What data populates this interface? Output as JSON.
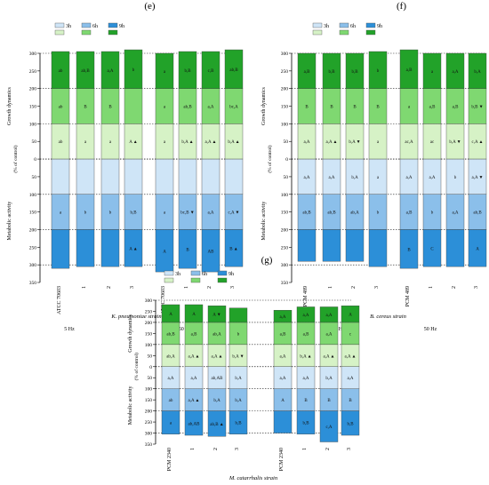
{
  "legend": {
    "entries": [
      "3h",
      "6h",
      "9h"
    ],
    "growth_colors": [
      "#d6f2c6",
      "#7fd871",
      "#22a229"
    ],
    "metabolic_colors": [
      "#cfe5f7",
      "#8bbfea",
      "#2c8fd8"
    ]
  },
  "axis": {
    "ylabel_top": "Growth dynamics",
    "ylabel_pct": "(% of control)",
    "ylabel_bottom": "Metabolic activity",
    "ticks": [
      "300",
      "250",
      "200",
      "150",
      "100",
      "50",
      "0",
      "50",
      "100",
      "150",
      "200",
      "250",
      "300",
      "350"
    ]
  },
  "chart_data": [
    {
      "type": "bar",
      "panel": "(e)",
      "title": "K. pneumoniae strain",
      "categories": [
        "ATCC 70603",
        "1",
        "2",
        "3",
        "ATCC 70603",
        "1",
        "2",
        "3"
      ],
      "groups": [
        "5 Hz",
        "50 Hz"
      ],
      "ylim_growth": [
        0,
        300
      ],
      "ylim_metabolic": [
        0,
        350
      ],
      "series": [
        {
          "name": "3h",
          "growth": [
            100,
            100,
            100,
            100,
            100,
            100,
            100,
            100
          ],
          "metabolic": [
            100,
            100,
            100,
            100,
            100,
            100,
            100,
            100
          ]
        },
        {
          "name": "6h",
          "growth": [
            200,
            200,
            200,
            200,
            200,
            200,
            200,
            200
          ],
          "metabolic": [
            200,
            200,
            200,
            200,
            200,
            200,
            200,
            200
          ]
        },
        {
          "name": "9h",
          "growth": [
            305,
            305,
            305,
            310,
            300,
            305,
            305,
            310
          ],
          "metabolic": [
            310,
            305,
            305,
            305,
            320,
            310,
            320,
            305
          ]
        }
      ],
      "labels_growth": [
        [
          "ab",
          "a",
          "a",
          "A ▲",
          "a",
          "b,A ▲",
          "a,A ▲",
          "b,A ▲"
        ],
        [
          "ab",
          "B",
          "B",
          "",
          "a",
          "ab,B",
          "a,A",
          "bc,A"
        ],
        [
          "ab",
          "ab,B",
          "a,A",
          "b",
          "a",
          "b,B",
          "c,B",
          "ab,B"
        ]
      ],
      "labels_metabolic": [
        [
          "",
          "",
          "",
          "",
          "",
          "",
          "",
          ""
        ],
        [
          "a",
          "b",
          "b",
          "b,B",
          "a",
          "bc,B ▼",
          "a,A",
          "c,A ▼"
        ],
        [
          "",
          "",
          "",
          "A ▲",
          "A",
          "B",
          "AB",
          "B ▲"
        ]
      ]
    },
    {
      "type": "bar",
      "panel": "(f)",
      "title": "B. cereus strain",
      "categories": [
        "PCM 489",
        "1",
        "2",
        "3",
        "PCM 489",
        "1",
        "2",
        "3"
      ],
      "groups": [
        "5 Hz",
        "50 Hz"
      ],
      "ylim_growth": [
        0,
        300
      ],
      "ylim_metabolic": [
        0,
        350
      ],
      "series": [
        {
          "name": "3h",
          "growth": [
            100,
            100,
            100,
            100,
            100,
            100,
            100,
            100
          ],
          "metabolic": [
            100,
            100,
            100,
            100,
            100,
            100,
            100,
            100
          ]
        },
        {
          "name": "6h",
          "growth": [
            200,
            200,
            200,
            200,
            200,
            200,
            200,
            200
          ],
          "metabolic": [
            200,
            200,
            200,
            200,
            200,
            200,
            200,
            200
          ]
        },
        {
          "name": "9h",
          "growth": [
            300,
            300,
            300,
            305,
            310,
            300,
            300,
            300
          ],
          "metabolic": [
            290,
            290,
            290,
            305,
            310,
            305,
            305,
            305
          ]
        }
      ],
      "labels_growth": [
        [
          "a,A",
          "a,A ▲",
          "b,A ▼",
          "a",
          "ac,A",
          "ac",
          "b,A ▼",
          "c,A ▲"
        ],
        [
          "B",
          "B",
          "B",
          "B",
          "a",
          "a,B",
          "a,B",
          "b,B ▼"
        ],
        [
          "a,B",
          "b,B",
          "b,B",
          "b",
          "a,B",
          "a",
          "a,A",
          "b,A"
        ]
      ],
      "labels_metabolic": [
        [
          "a,A",
          "a,A",
          "b,A",
          "a",
          "a,A",
          "a,A",
          "b",
          "a,A ▼"
        ],
        [
          "ab,B",
          "ab,B",
          "ab,A",
          "b",
          "a,B",
          "b",
          "a,A",
          "ab,B"
        ],
        [
          "",
          "",
          "",
          "",
          "B",
          "C",
          "",
          "A"
        ]
      ]
    },
    {
      "type": "bar",
      "panel": "(g)",
      "title": "M. catarrhalis strain",
      "categories": [
        "PCM 2340",
        "1",
        "2",
        "3",
        "PCM 2340",
        "1",
        "2",
        "3"
      ],
      "groups": [
        "5 Hz",
        "50 Hz"
      ],
      "ylim_growth": [
        0,
        300
      ],
      "ylim_metabolic": [
        0,
        350
      ],
      "series": [
        {
          "name": "3h",
          "growth": [
            100,
            100,
            100,
            100,
            100,
            100,
            100,
            100
          ],
          "metabolic": [
            100,
            100,
            100,
            100,
            100,
            100,
            100,
            100
          ]
        },
        {
          "name": "6h",
          "growth": [
            200,
            200,
            200,
            200,
            200,
            200,
            200,
            200
          ],
          "metabolic": [
            200,
            200,
            200,
            200,
            200,
            200,
            200,
            200
          ]
        },
        {
          "name": "9h",
          "growth": [
            280,
            280,
            275,
            265,
            255,
            270,
            270,
            275
          ],
          "metabolic": [
            305,
            310,
            315,
            305,
            300,
            305,
            340,
            310
          ]
        }
      ],
      "labels_growth": [
        [
          "ab,A",
          "a,A ▲",
          "a,A ▲",
          "b,A ▼",
          "a,A",
          "b,A ▲",
          "a,A ▲",
          "a,A ▲"
        ],
        [
          "ab,B",
          "a,B",
          "ab,A",
          "b",
          "a,B",
          "a,B",
          "a,A",
          "c"
        ],
        [
          "A",
          "A",
          "A ▼",
          "",
          "a,A",
          "a,A",
          "a,A",
          "A"
        ]
      ],
      "labels_metabolic": [
        [
          "a,A",
          "a,A",
          "ab,AB",
          "b,A",
          "a,A",
          "a,A",
          "b,A",
          "a,A"
        ],
        [
          "ab",
          "a,A ▲",
          "b,A",
          "b,A",
          "A",
          "B",
          "B",
          "B"
        ],
        [
          "a",
          "ab,AB",
          "ab,B ▲",
          "b,B",
          "",
          "b,B",
          "c,A",
          "b,B"
        ]
      ]
    }
  ]
}
